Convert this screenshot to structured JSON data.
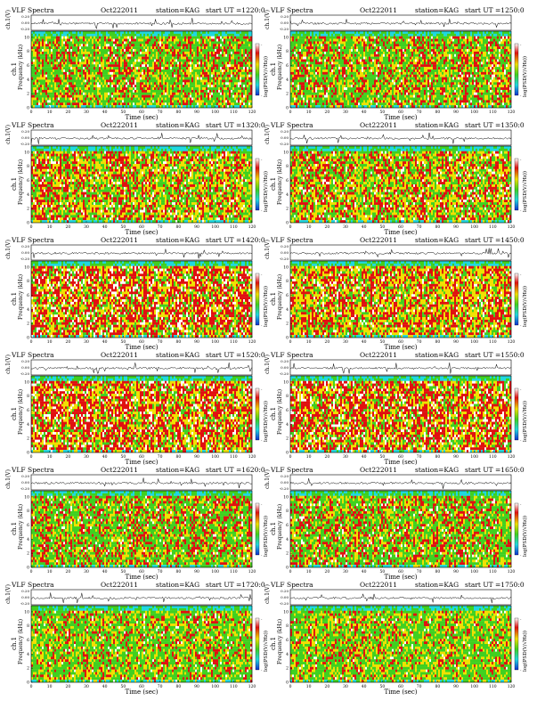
{
  "common": {
    "title": "VLF Spectra",
    "date": "Oct222011",
    "station": "station=KAG",
    "start_prefix": "start  UT  =",
    "trace_ylabel": "ch.1(V)",
    "trace_ticks": [
      "0.20",
      "0.00",
      "-0.20"
    ],
    "spec_ylabel_ch": "ch.1",
    "spec_ylabel": "Frequency  (kHz)",
    "freq_ticks": [
      "0",
      "2",
      "4",
      "6",
      "8",
      "10"
    ],
    "time_ticks": [
      "0",
      "10",
      "20",
      "30",
      "40",
      "50",
      "60",
      "70",
      "80",
      "90",
      "100",
      "110",
      "120"
    ],
    "xlabel": "Time  (sec)",
    "colorbar_label": "log(PSD(V/√Hz))",
    "cb_tick_top": "-",
    "cb_tick_bottom": "-",
    "colors": {
      "red": "#e01010",
      "yellow": "#f0e000",
      "green": "#40d020",
      "cyan": "#20d8e0",
      "blue": "#1848e8",
      "white": "#ffffff"
    }
  },
  "chart_data": [
    {
      "type": "heatmap",
      "title": "VLF Spectra",
      "date": "Oct222011",
      "station": "station=KAG",
      "start_time": "1220:0",
      "xlabel": "Time  (sec)",
      "ylabel": "Frequency  (kHz)",
      "xlim": [
        0,
        120
      ],
      "ylim": [
        0,
        10
      ],
      "trace_ylim": [
        -0.3,
        0.3
      ],
      "dominant": "green/red"
    },
    {
      "type": "heatmap",
      "title": "VLF Spectra",
      "date": "Oct222011",
      "station": "station=KAG",
      "start_time": "1250:0",
      "xlabel": "Time  (sec)",
      "ylabel": "Frequency  (kHz)",
      "xlim": [
        0,
        120
      ],
      "ylim": [
        0,
        10
      ],
      "trace_ylim": [
        -0.3,
        0.3
      ],
      "dominant": "green/red"
    },
    {
      "type": "heatmap",
      "title": "VLF Spectra",
      "date": "Oct222011",
      "station": "station=KAG",
      "start_time": "1320:0",
      "xlabel": "Time  (sec)",
      "ylabel": "Frequency  (kHz)",
      "xlim": [
        0,
        120
      ],
      "ylim": [
        0,
        10
      ],
      "trace_ylim": [
        -0.3,
        0.3
      ],
      "dominant": "yellow/red"
    },
    {
      "type": "heatmap",
      "title": "VLF Spectra",
      "date": "Oct222011",
      "station": "station=KAG",
      "start_time": "1350:0",
      "xlabel": "Time  (sec)",
      "ylabel": "Frequency  (kHz)",
      "xlim": [
        0,
        120
      ],
      "ylim": [
        0,
        10
      ],
      "trace_ylim": [
        -0.3,
        0.3
      ],
      "dominant": "yellow/red"
    },
    {
      "type": "heatmap",
      "title": "VLF Spectra",
      "date": "Oct222011",
      "station": "station=KAG",
      "start_time": "1420:0",
      "xlabel": "Time  (sec)",
      "ylabel": "Frequency  (kHz)",
      "xlim": [
        0,
        120
      ],
      "ylim": [
        0,
        10
      ],
      "trace_ylim": [
        -0.3,
        0.3
      ],
      "dominant": "red/white"
    },
    {
      "type": "heatmap",
      "title": "VLF Spectra",
      "date": "Oct222011",
      "station": "station=KAG",
      "start_time": "1450:0",
      "xlabel": "Time  (sec)",
      "ylabel": "Frequency  (kHz)",
      "xlim": [
        0,
        120
      ],
      "ylim": [
        0,
        10
      ],
      "trace_ylim": [
        -0.3,
        0.3
      ],
      "dominant": "red/yellow"
    },
    {
      "type": "heatmap",
      "title": "VLF Spectra",
      "date": "Oct222011",
      "station": "station=KAG",
      "start_time": "1520:0",
      "xlabel": "Time  (sec)",
      "ylabel": "Frequency  (kHz)",
      "xlim": [
        0,
        120
      ],
      "ylim": [
        0,
        10
      ],
      "trace_ylim": [
        -0.3,
        0.3
      ],
      "dominant": "red/white"
    },
    {
      "type": "heatmap",
      "title": "VLF Spectra",
      "date": "Oct222011",
      "station": "station=KAG",
      "start_time": "1550:0",
      "xlabel": "Time  (sec)",
      "ylabel": "Frequency  (kHz)",
      "xlim": [
        0,
        120
      ],
      "ylim": [
        0,
        10
      ],
      "trace_ylim": [
        -0.3,
        0.3
      ],
      "dominant": "red/white"
    },
    {
      "type": "heatmap",
      "title": "VLF Spectra",
      "date": "Oct222011",
      "station": "station=KAG",
      "start_time": "1620:0",
      "xlabel": "Time  (sec)",
      "ylabel": "Frequency  (kHz)",
      "xlim": [
        0,
        120
      ],
      "ylim": [
        0,
        10
      ],
      "trace_ylim": [
        -0.3,
        0.3
      ],
      "dominant": "green/red"
    },
    {
      "type": "heatmap",
      "title": "VLF Spectra",
      "date": "Oct222011",
      "station": "station=KAG",
      "start_time": "1650:0",
      "xlabel": "Time  (sec)",
      "ylabel": "Frequency  (kHz)",
      "xlim": [
        0,
        120
      ],
      "ylim": [
        0,
        10
      ],
      "trace_ylim": [
        -0.3,
        0.3
      ],
      "dominant": "green/red"
    },
    {
      "type": "heatmap",
      "title": "VLF Spectra",
      "date": "Oct222011",
      "station": "station=KAG",
      "start_time": "1720:0",
      "xlabel": "Time  (sec)",
      "ylabel": "Frequency  (kHz)",
      "xlim": [
        0,
        120
      ],
      "ylim": [
        0,
        10
      ],
      "trace_ylim": [
        -0.3,
        0.3
      ],
      "dominant": "green/yellow"
    },
    {
      "type": "heatmap",
      "title": "VLF Spectra",
      "date": "Oct222011",
      "station": "station=KAG",
      "start_time": "1750:0",
      "xlabel": "Time  (sec)",
      "ylabel": "Frequency  (kHz)",
      "xlim": [
        0,
        120
      ],
      "ylim": [
        0,
        10
      ],
      "trace_ylim": [
        -0.3,
        0.3
      ],
      "dominant": "green/yellow"
    }
  ]
}
